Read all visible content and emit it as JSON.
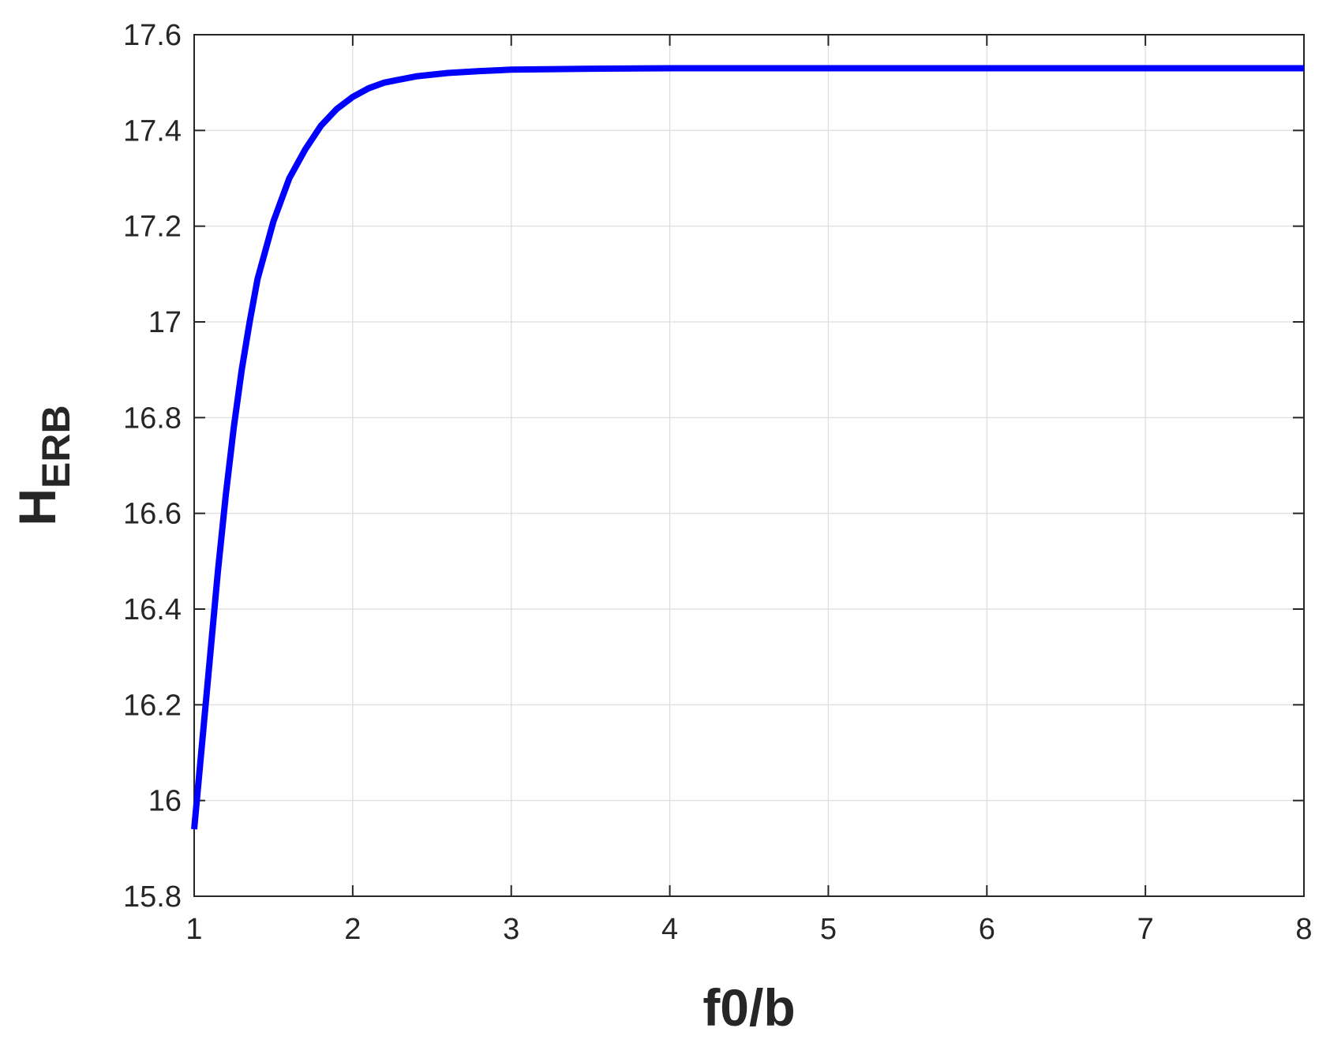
{
  "chart_data": {
    "type": "line",
    "x_label": "f0/b",
    "y_label": "H",
    "y_label_sub": "ERB",
    "x": [
      1,
      1.05,
      1.1,
      1.15,
      1.2,
      1.25,
      1.3,
      1.35,
      1.4,
      1.5,
      1.6,
      1.7,
      1.8,
      1.9,
      2,
      2.1,
      2.2,
      2.4,
      2.6,
      2.8,
      3,
      3.5,
      4,
      5,
      6,
      7,
      8
    ],
    "series": [
      {
        "name": "H_ERB",
        "color": "#0000ff",
        "values": [
          15.94,
          16.12,
          16.3,
          16.48,
          16.64,
          16.78,
          16.9,
          17.0,
          17.09,
          17.21,
          17.3,
          17.36,
          17.41,
          17.445,
          17.47,
          17.488,
          17.5,
          17.513,
          17.52,
          17.524,
          17.527,
          17.529,
          17.53,
          17.53,
          17.53,
          17.53,
          17.53
        ]
      }
    ],
    "xlim": [
      1,
      8
    ],
    "xticks": [
      1,
      2,
      3,
      4,
      5,
      6,
      7,
      8
    ],
    "ylim": [
      15.8,
      17.6
    ],
    "yticks": [
      15.8,
      16,
      16.2,
      16.4,
      16.6,
      16.8,
      17,
      17.2,
      17.4,
      17.6
    ],
    "grid": true
  }
}
